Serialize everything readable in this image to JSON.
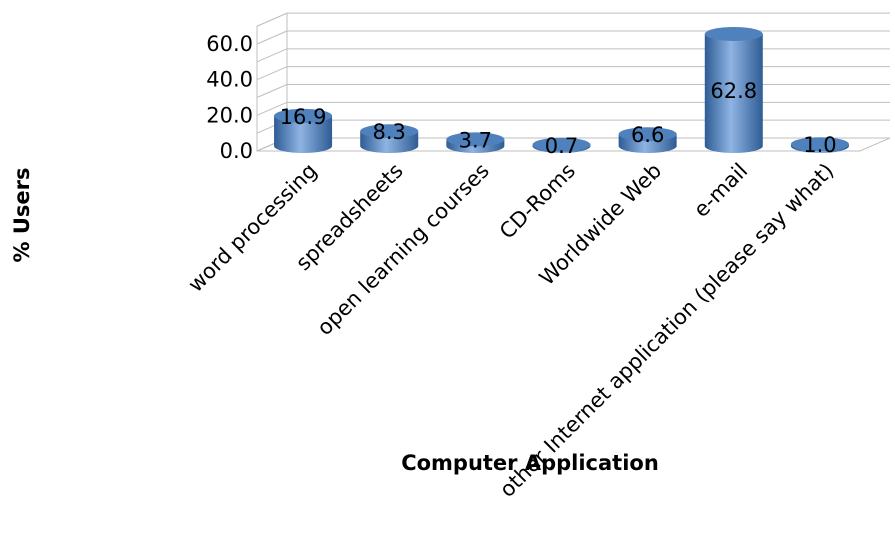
{
  "chart_data": {
    "type": "bar",
    "style": "3d-cylinder",
    "title": "",
    "xlabel": "Computer Application",
    "ylabel": "% Users",
    "categories": [
      "word processing",
      "spreadsheets",
      "open learning courses",
      "CD-Roms",
      "Worldwide Web",
      "e-mail",
      "other Internet application (please say what)"
    ],
    "values": [
      16.9,
      8.3,
      3.7,
      0.7,
      6.6,
      62.8,
      1.0
    ],
    "data_labels": [
      "16.9",
      "8.3",
      "3.7",
      "0.7",
      "6.6",
      "62.8",
      "1.0"
    ],
    "yticks": [
      "0.0",
      "20.0",
      "40.0",
      "60.0"
    ],
    "ylim": [
      0,
      70
    ],
    "grid": true,
    "legend": "none",
    "colors": {
      "bar": "#4f81bd",
      "bar_light": "#8fb4e3",
      "bar_dark": "#2e5c94",
      "grid": "#bfbfbf",
      "text": "#000000"
    }
  }
}
